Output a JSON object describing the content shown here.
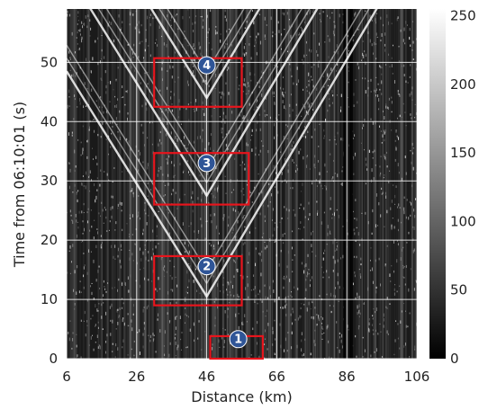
{
  "chart_data": {
    "type": "heatmap",
    "title": "",
    "xlabel": "Distance (km)",
    "ylabel": "Time from 06:10:01 (s)",
    "xlim": [
      6,
      106
    ],
    "ylim": [
      0,
      59
    ],
    "x_ticks": [
      6,
      26,
      46,
      66,
      86,
      106
    ],
    "y_ticks": [
      0,
      10,
      20,
      30,
      40,
      50
    ],
    "grid": true,
    "colormap": "gray",
    "colorbar": {
      "min": 0,
      "max": 255,
      "ticks": [
        0,
        50,
        100,
        150,
        200,
        250
      ]
    },
    "traces": [
      {
        "apex_km": 46,
        "apex_t": 10.5,
        "slope_left": -0.95,
        "slope_right": 1.0
      },
      {
        "apex_km": 46,
        "apex_t": 27.5,
        "slope_left": -0.95,
        "slope_right": 1.0
      },
      {
        "apex_km": 46,
        "apex_t": 44.0,
        "slope_left": -0.95,
        "slope_right": 1.0
      }
    ],
    "annotations": [
      {
        "label": "1",
        "x_range": [
          47,
          62
        ],
        "y_range": [
          0,
          3.8
        ],
        "marker_x": 55,
        "marker_y": 3.3
      },
      {
        "label": "2",
        "x_range": [
          31,
          56
        ],
        "y_range": [
          9,
          17.3
        ],
        "marker_x": 46,
        "marker_y": 15.6
      },
      {
        "label": "3",
        "x_range": [
          31,
          58
        ],
        "y_range": [
          26,
          34.7
        ],
        "marker_x": 46,
        "marker_y": 33
      },
      {
        "label": "4",
        "x_range": [
          31,
          56
        ],
        "y_range": [
          42.5,
          50.7
        ],
        "marker_x": 46,
        "marker_y": 49.5
      }
    ],
    "box_color": "#e8141c",
    "marker_color": "#2f5597",
    "grid_color": "#ffffff",
    "dark_columns_km": [
      85.5,
      87.2
    ]
  }
}
